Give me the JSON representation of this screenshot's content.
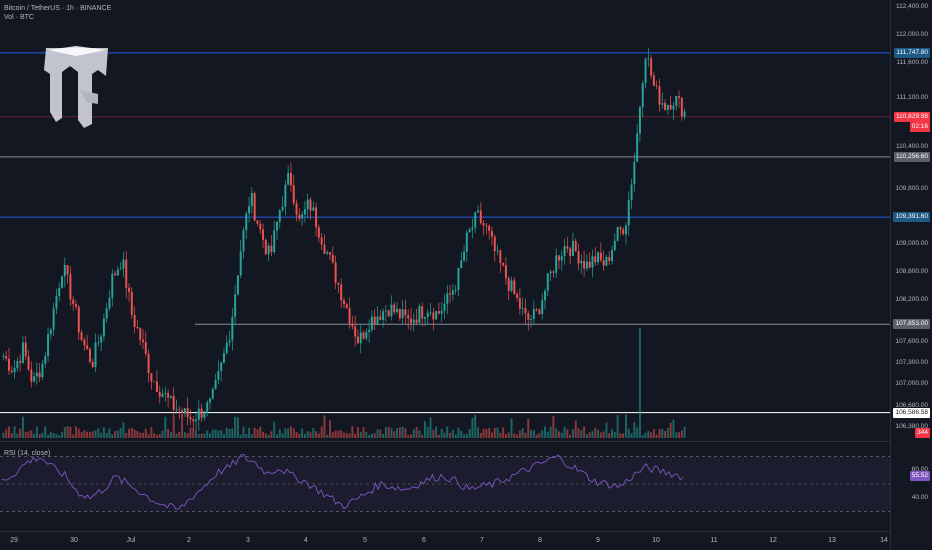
{
  "header": {
    "symbol": "Bitcoin / TetherUS · 1h · BINANCE",
    "volume_label": "Vol · BTC"
  },
  "rsi": {
    "label": "RSI (14, close)",
    "current": "55.52",
    "levels": [
      "60.00",
      "40.00"
    ]
  },
  "price_scale": {
    "ticks": [
      "112,400.00",
      "112,000.00",
      "111,600.00",
      "111,100.00",
      "110,800.00",
      "110,400.00",
      "109,800.00",
      "109,000.00",
      "108,600.00",
      "108,200.00",
      "107,600.00",
      "107,300.00",
      "107,000.00",
      "106,680.00",
      "106,380.00"
    ]
  },
  "levels": [
    {
      "name": "resistance-1",
      "label": "111,747.80",
      "color": "#2962ff",
      "tag_bg": "#1e5a86"
    },
    {
      "name": "current-price",
      "label": "110,829.98",
      "sub": "02:16",
      "color": "#f23645",
      "tag_bg": "#f23645"
    },
    {
      "name": "support-1",
      "label": "110,256.60",
      "color": "#9598a1",
      "tag_bg": "#5d606b"
    },
    {
      "name": "support-2",
      "label": "109,391.60",
      "color": "#2962ff",
      "tag_bg": "#1e5a86"
    },
    {
      "name": "support-3",
      "label": "107,853.00",
      "color": "#9598a1",
      "tag_bg": "#5d606b"
    },
    {
      "name": "support-4",
      "label": "106,586.58",
      "color": "#ffffff",
      "tag_bg": "#ffffff"
    }
  ],
  "volume_tag": "344",
  "time_axis": [
    "29",
    "30",
    "Jul",
    "2",
    "3",
    "4",
    "5",
    "6",
    "7",
    "8",
    "9",
    "10",
    "11",
    "12",
    "13",
    "14"
  ],
  "colors": {
    "up": "#26a69a",
    "down": "#ef5350",
    "rsi": "#7e57c2",
    "bg": "#131722"
  },
  "chart_data": {
    "type": "candlestick",
    "symbol": "BTCUSDT",
    "interval": "1h",
    "close_path": [
      107400,
      107200,
      107500,
      107000,
      107300,
      108000,
      108700,
      108200,
      107600,
      107300,
      107800,
      108500,
      108800,
      108000,
      107600,
      107100,
      106900,
      106700,
      106600,
      106500,
      106600,
      106700,
      107200,
      107800,
      108900,
      109700,
      109200,
      108800,
      109500,
      110000,
      109300,
      109600,
      109200,
      108800,
      108400,
      108000,
      107600,
      107900,
      108000,
      108100,
      108000,
      107900,
      108000,
      108100,
      108000,
      108200,
      108500,
      109100,
      109400,
      109200,
      108800,
      108500,
      108200,
      107900,
      108000,
      108400,
      108800,
      109000,
      108900,
      108700,
      108800,
      108700,
      109100,
      109300,
      110300,
      111800,
      111200,
      111000,
      111100,
      110900
    ],
    "rsi_path": [
      52,
      58,
      66,
      70,
      62,
      56,
      44,
      40,
      46,
      55,
      50,
      44,
      38,
      34,
      31,
      40,
      48,
      58,
      62,
      70,
      66,
      58,
      62,
      56,
      52,
      46,
      40,
      34,
      38,
      44,
      50,
      48,
      46,
      50,
      54,
      56,
      52,
      46,
      48,
      50,
      54,
      58,
      62,
      66,
      70,
      64,
      58,
      52,
      50,
      48,
      56,
      62,
      60,
      58,
      55
    ],
    "volume_spike_x_fraction_of_series": 0.93
  }
}
